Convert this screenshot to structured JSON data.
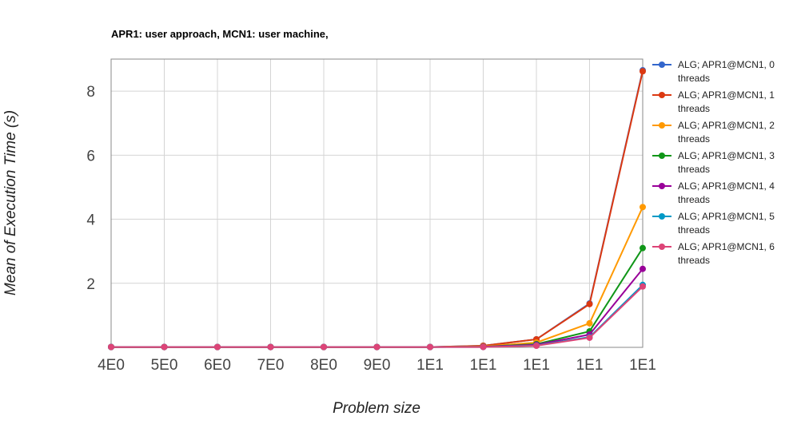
{
  "chart_data": {
    "type": "line",
    "title": "APR1: user approach, MCN1: user machine,",
    "xlabel": "Problem size",
    "ylabel": "Mean of Execution Time (s)",
    "categories": [
      "4E0",
      "5E0",
      "6E0",
      "7E0",
      "8E0",
      "9E0",
      "1E1",
      "1E1",
      "1E1",
      "1E1",
      "1E1"
    ],
    "y_ticks": [
      "2",
      "4",
      "6",
      "8"
    ],
    "ylim": [
      0,
      9
    ],
    "grid": true,
    "legend_position": "right",
    "series": [
      {
        "name": [
          "ALG; APR1@MCN1, 0",
          "threads"
        ],
        "color": "#3366cc",
        "values": [
          0.01,
          0.01,
          0.01,
          0.01,
          0.01,
          0.01,
          0.01,
          0.05,
          0.25,
          1.37,
          8.65
        ]
      },
      {
        "name": [
          "ALG; APR1@MCN1, 1",
          "threads"
        ],
        "color": "#dc3912",
        "values": [
          0.01,
          0.01,
          0.01,
          0.01,
          0.01,
          0.01,
          0.01,
          0.05,
          0.25,
          1.35,
          8.62
        ]
      },
      {
        "name": [
          "ALG; APR1@MCN1, 2",
          "threads"
        ],
        "color": "#ff9900",
        "values": [
          0.01,
          0.01,
          0.01,
          0.01,
          0.01,
          0.01,
          0.01,
          0.03,
          0.15,
          0.75,
          4.38
        ]
      },
      {
        "name": [
          "ALG; APR1@MCN1, 3",
          "threads"
        ],
        "color": "#109618",
        "values": [
          0.01,
          0.01,
          0.01,
          0.01,
          0.01,
          0.01,
          0.01,
          0.02,
          0.1,
          0.5,
          3.1
        ]
      },
      {
        "name": [
          "ALG; APR1@MCN1, 4",
          "threads"
        ],
        "color": "#990099",
        "values": [
          0.01,
          0.01,
          0.01,
          0.01,
          0.01,
          0.01,
          0.01,
          0.02,
          0.08,
          0.4,
          2.45
        ]
      },
      {
        "name": [
          "ALG; APR1@MCN1, 5",
          "threads"
        ],
        "color": "#0099c6",
        "values": [
          0.01,
          0.01,
          0.01,
          0.01,
          0.01,
          0.01,
          0.01,
          0.01,
          0.06,
          0.32,
          1.95
        ]
      },
      {
        "name": [
          "ALG; APR1@MCN1, 6",
          "threads"
        ],
        "color": "#dd4477",
        "values": [
          0.01,
          0.01,
          0.01,
          0.01,
          0.01,
          0.01,
          0.01,
          0.01,
          0.05,
          0.3,
          1.9
        ]
      }
    ]
  }
}
